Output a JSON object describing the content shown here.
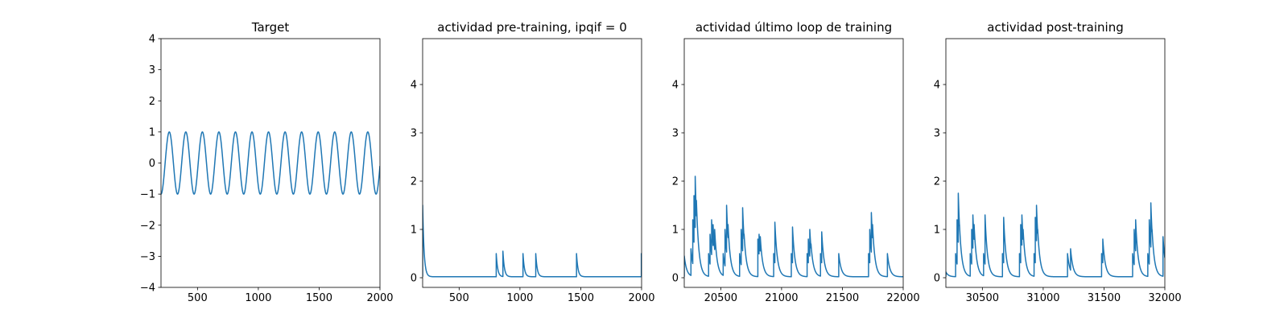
{
  "figure": {
    "line_color": "#1f77b4",
    "axes_color": "#000000",
    "background": "#ffffff"
  },
  "chart_data": [
    {
      "type": "line",
      "title": "Target",
      "xlabel": "",
      "ylabel": "",
      "xlim": [
        200,
        2000
      ],
      "ylim": [
        -4,
        4
      ],
      "xticks": [
        500,
        1000,
        1500,
        2000
      ],
      "yticks": [
        -4,
        -3,
        -2,
        -1,
        0,
        1,
        2,
        3,
        4
      ],
      "grid": false,
      "series": [
        {
          "generator": "sine",
          "x_range": [
            200,
            2000
          ],
          "amplitude": 1,
          "period": 136,
          "start_value": -1
        }
      ]
    },
    {
      "type": "line",
      "title": "actividad pre-training, ipqif = 0",
      "xlabel": "",
      "ylabel": "",
      "xlim": [
        200,
        2000
      ],
      "ylim": [
        -0.2,
        4.95
      ],
      "xticks": [
        500,
        1000,
        1500,
        2000
      ],
      "yticks": [
        0,
        1,
        2,
        3,
        4
      ],
      "grid": false,
      "series": [
        {
          "generator": "spike_decay",
          "x_range": [
            200,
            2000
          ],
          "tau": 12,
          "baseline": 0.02,
          "events": [
            [
              200,
              1.5
            ],
            [
              805,
              0.5
            ],
            [
              860,
              0.55
            ],
            [
              1025,
              0.5
            ],
            [
              1130,
              0.5
            ],
            [
              1465,
              0.5
            ],
            [
              1998,
              0.5
            ]
          ]
        }
      ]
    },
    {
      "type": "line",
      "title": "actividad último loop de training",
      "xlabel": "",
      "ylabel": "",
      "xlim": [
        20200,
        22000
      ],
      "ylim": [
        -0.2,
        4.95
      ],
      "xticks": [
        20500,
        21000,
        21500,
        22000
      ],
      "yticks": [
        0,
        1,
        2,
        3,
        4
      ],
      "grid": false,
      "series": [
        {
          "generator": "spike_decay",
          "x_range": [
            20200,
            22000
          ],
          "tau": 20,
          "baseline": 0.02,
          "events": [
            [
              20200,
              0.45
            ],
            [
              20255,
              0.6
            ],
            [
              20270,
              1.2
            ],
            [
              20280,
              1.7
            ],
            [
              20290,
              2.1
            ],
            [
              20300,
              1.6
            ],
            [
              20400,
              0.5
            ],
            [
              20412,
              0.9
            ],
            [
              20425,
              1.2
            ],
            [
              20437,
              1.1
            ],
            [
              20450,
              1.0
            ],
            [
              20520,
              0.5
            ],
            [
              20535,
              1.0
            ],
            [
              20548,
              1.5
            ],
            [
              20560,
              1.1
            ],
            [
              20655,
              0.5
            ],
            [
              20668,
              1.0
            ],
            [
              20680,
              1.45
            ],
            [
              20692,
              0.9
            ],
            [
              20805,
              0.8
            ],
            [
              20815,
              0.9
            ],
            [
              20825,
              0.85
            ],
            [
              20935,
              0.5
            ],
            [
              20945,
              1.15
            ],
            [
              21080,
              0.5
            ],
            [
              21090,
              1.05
            ],
            [
              21210,
              0.5
            ],
            [
              21220,
              0.8
            ],
            [
              21232,
              1.0
            ],
            [
              21242,
              0.7
            ],
            [
              21320,
              0.5
            ],
            [
              21330,
              0.95
            ],
            [
              21470,
              0.5
            ],
            [
              21715,
              0.5
            ],
            [
              21725,
              1.0
            ],
            [
              21738,
              1.35
            ],
            [
              21748,
              1.1
            ],
            [
              21870,
              0.5
            ]
          ]
        }
      ]
    },
    {
      "type": "line",
      "title": "actividad post-training",
      "xlabel": "",
      "ylabel": "",
      "xlim": [
        30200,
        32000
      ],
      "ylim": [
        -0.2,
        4.95
      ],
      "xticks": [
        30500,
        31000,
        31500,
        32000
      ],
      "yticks": [
        0,
        1,
        2,
        3,
        4
      ],
      "grid": false,
      "series": [
        {
          "generator": "spike_decay",
          "x_range": [
            30200,
            32000
          ],
          "tau": 20,
          "baseline": 0.02,
          "events": [
            [
              30200,
              0.12
            ],
            [
              30280,
              0.5
            ],
            [
              30292,
              1.2
            ],
            [
              30302,
              1.75
            ],
            [
              30312,
              1.1
            ],
            [
              30400,
              0.5
            ],
            [
              30412,
              1.0
            ],
            [
              30422,
              1.3
            ],
            [
              30432,
              1.1
            ],
            [
              30510,
              0.5
            ],
            [
              30522,
              1.3
            ],
            [
              30665,
              0.5
            ],
            [
              30675,
              1.25
            ],
            [
              30805,
              0.5
            ],
            [
              30815,
              1.1
            ],
            [
              30825,
              1.3
            ],
            [
              30835,
              1.0
            ],
            [
              30925,
              0.5
            ],
            [
              30935,
              1.25
            ],
            [
              30945,
              1.5
            ],
            [
              30955,
              1.0
            ],
            [
              31200,
              0.5
            ],
            [
              31225,
              0.6
            ],
            [
              31480,
              0.5
            ],
            [
              31490,
              0.8
            ],
            [
              31735,
              0.5
            ],
            [
              31748,
              1.0
            ],
            [
              31760,
              1.2
            ],
            [
              31860,
              0.5
            ],
            [
              31872,
              1.2
            ],
            [
              31885,
              1.55
            ],
            [
              31895,
              1.0
            ],
            [
              31985,
              0.85
            ]
          ]
        }
      ]
    }
  ]
}
